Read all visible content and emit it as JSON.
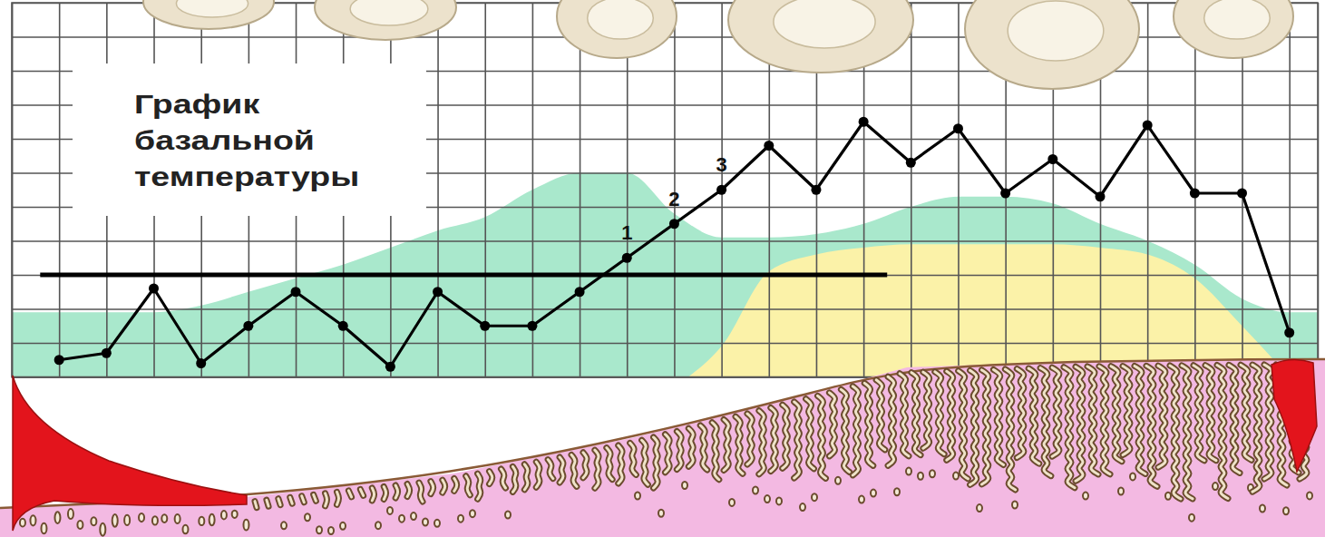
{
  "chart_data": {
    "type": "line",
    "title": "График базальной температуры",
    "x": [
      1,
      2,
      3,
      4,
      5,
      6,
      7,
      8,
      9,
      10,
      11,
      12,
      13,
      14,
      15,
      16,
      17,
      18,
      19,
      20,
      21,
      22,
      23,
      24,
      25,
      26,
      27
    ],
    "series": [
      {
        "values": [
          36.05,
          36.07,
          36.26,
          36.04,
          36.15,
          36.25,
          36.15,
          36.03,
          36.25,
          36.15,
          36.15,
          36.25,
          36.35,
          36.45,
          36.55,
          36.68,
          36.55,
          36.75,
          36.63,
          36.73,
          36.54,
          36.64,
          36.53,
          36.74,
          36.54,
          36.54,
          36.13
        ],
        "color": "#000000",
        "marker": "circle"
      }
    ],
    "xlim": [
      0,
      27.6
    ],
    "ylim": [
      36.0,
      37.1
    ],
    "xticks": [
      1,
      2,
      3,
      4,
      5,
      6,
      7,
      8,
      9,
      10,
      11,
      12,
      13,
      14,
      15,
      16,
      17,
      18,
      19,
      20,
      21,
      22,
      23,
      24,
      25,
      26,
      27
    ],
    "yticks": [
      36.1,
      36.2,
      36.3,
      36.4,
      36.5,
      36.6,
      36.7,
      36.8,
      36.9,
      37.0
    ],
    "grid": true,
    "tick_labels": false,
    "coverline": {
      "value": 36.3,
      "x": [
        0.6,
        18.5
      ]
    },
    "areas": [
      {
        "x": [
          0,
          1,
          2,
          3,
          4,
          5,
          6,
          7,
          8,
          9,
          10,
          11,
          12,
          13,
          14,
          15,
          16,
          17,
          18,
          19,
          20,
          21,
          22,
          23,
          24,
          25,
          26,
          27,
          27.6
        ],
        "values": [
          36.19,
          36.19,
          36.19,
          36.19,
          36.21,
          36.25,
          36.29,
          36.33,
          36.38,
          36.43,
          36.47,
          36.55,
          36.6,
          36.6,
          36.48,
          36.41,
          36.41,
          36.42,
          36.45,
          36.5,
          36.53,
          36.53,
          36.51,
          36.45,
          36.4,
          36.33,
          36.23,
          36.19,
          36.19
        ],
        "color": "#a9e8cc"
      },
      {
        "x": [
          14.3,
          15,
          16,
          17,
          18,
          19,
          20,
          21,
          22,
          23,
          24,
          25,
          26,
          27
        ],
        "values": [
          36.0,
          36.09,
          36.31,
          36.36,
          36.38,
          36.39,
          36.39,
          36.39,
          36.39,
          36.38,
          36.36,
          36.29,
          36.15,
          36.0
        ],
        "color": "#fbf2a8"
      }
    ],
    "annotations": [
      {
        "text": "1",
        "x": 13
      },
      {
        "text": "2",
        "x": 14
      },
      {
        "text": "3",
        "x": 15
      }
    ]
  }
}
